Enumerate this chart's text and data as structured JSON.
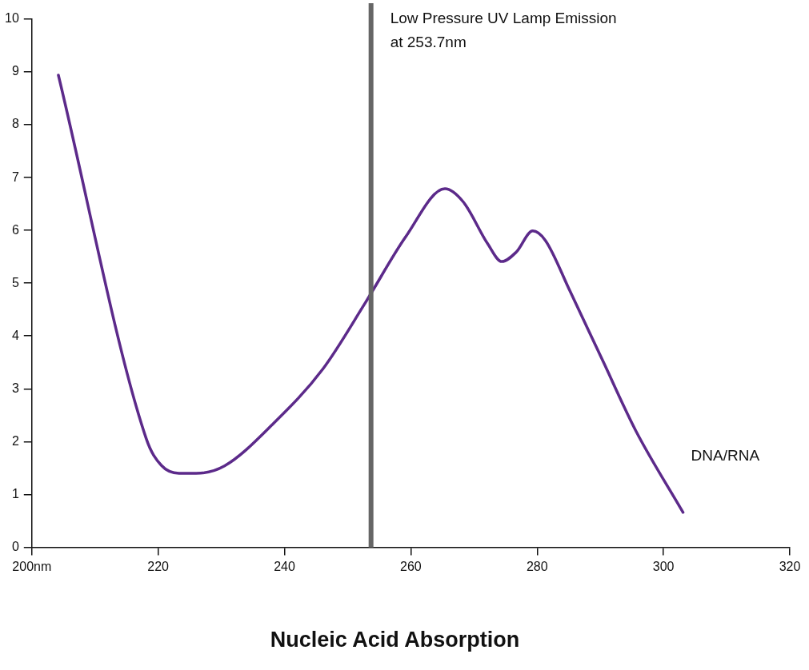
{
  "chart_data": {
    "type": "line",
    "title": "Nucleic Acid Absorption",
    "xlim": [
      200,
      320
    ],
    "xticks": [
      {
        "value": 200,
        "label": "200nm"
      },
      220,
      240,
      260,
      280,
      300,
      320
    ],
    "ylim": [
      0,
      10
    ],
    "yticks": [
      0,
      1,
      2,
      3,
      4,
      5,
      6,
      7,
      8,
      9,
      10
    ],
    "grid": false,
    "legend": false,
    "marker": "none",
    "line_style": "solid",
    "series": [
      {
        "name": "DNA/RNA",
        "color": "#5c2a8a",
        "x": [
          204.2,
          218.1,
          220.5,
          223.3,
          226,
          230.5,
          238.3,
          246.1,
          252.8,
          259.2,
          265.4,
          268.3,
          272.2,
          274.4,
          276.7,
          279.3,
          281.3,
          285.2,
          290.4,
          295.6,
          303.1
        ],
        "values": [
          8.94,
          2.06,
          1.55,
          1.4,
          1.4,
          1.54,
          2.35,
          3.38,
          4.63,
          5.88,
          6.79,
          6.54,
          5.74,
          5.41,
          5.59,
          5.99,
          5.81,
          4.85,
          3.53,
          2.21,
          0.66
        ]
      }
    ],
    "ref_lines": [
      {
        "axis": "x",
        "value": 253.7,
        "label": "Low Pressure UV Lamp Emission\nat 253.7nm",
        "color": "#666666"
      }
    ]
  }
}
